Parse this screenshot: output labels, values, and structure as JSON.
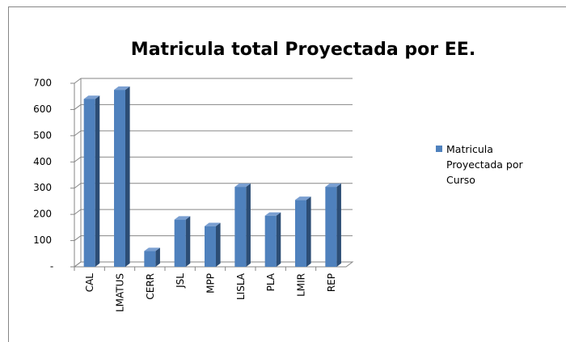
{
  "chart_data": {
    "type": "bar3d",
    "title": "Matricula total Proyectada por EE.",
    "categories": [
      "CAL",
      "LMATUS",
      "CERR",
      "JSL",
      "MPP",
      "LISLA",
      "PLA",
      "LMIR",
      "REP"
    ],
    "series": [
      {
        "name": "Matricula Proyectada por Curso",
        "color": "#4f81bd",
        "values": [
          640,
          675,
          60,
          180,
          155,
          305,
          195,
          255,
          305
        ]
      }
    ],
    "ylim": [
      0,
      700
    ],
    "yticks": [
      {
        "value": 0,
        "label": "-"
      },
      100,
      200,
      300,
      400,
      500,
      600,
      700
    ],
    "grid": true,
    "legend": "right"
  }
}
